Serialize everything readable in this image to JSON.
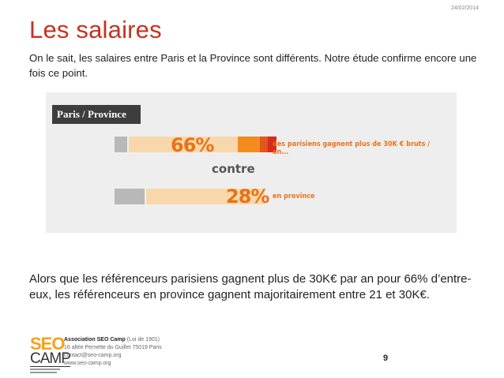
{
  "date": "24/02/2014",
  "title": "Les salaires",
  "intro": "On le sait, les salaires entre Paris et la Province sont différents. Notre étude confirme encore une fois ce point.",
  "infographic": {
    "header": "Paris / Province",
    "paris": {
      "percent_label": "66%",
      "caption": "des parisiens gagnent plus de 30K € bruts / an...",
      "share": 0.66
    },
    "separator": "contre",
    "province": {
      "percent_label": "28%",
      "caption": "en province",
      "share": 0.28
    },
    "colors": {
      "grey": "#b8b8b8",
      "light_orange": "#f8d8aa",
      "orange": "#f28c1e",
      "dark_orange": "#e2551b",
      "red": "#d62b1e",
      "text_orange": "#ea7218"
    }
  },
  "body": "Alors que les référenceurs parisiens gagnent plus de 30K€ par an pour 66% d’entre-eux, les référenceurs en province gagnent majoritairement entre 21 et 30K€.",
  "footer": {
    "logo_top": "SEO",
    "logo_bottom": "CAMP",
    "org_name": "Association SEO Camp",
    "org_suffix": "(Loi de 1901)",
    "address": "16 allée Pernette du Guillet 75019 Paris",
    "email": "contact@seo-camp.org",
    "website": "www.seo-camp.org"
  },
  "page_number": "9"
}
